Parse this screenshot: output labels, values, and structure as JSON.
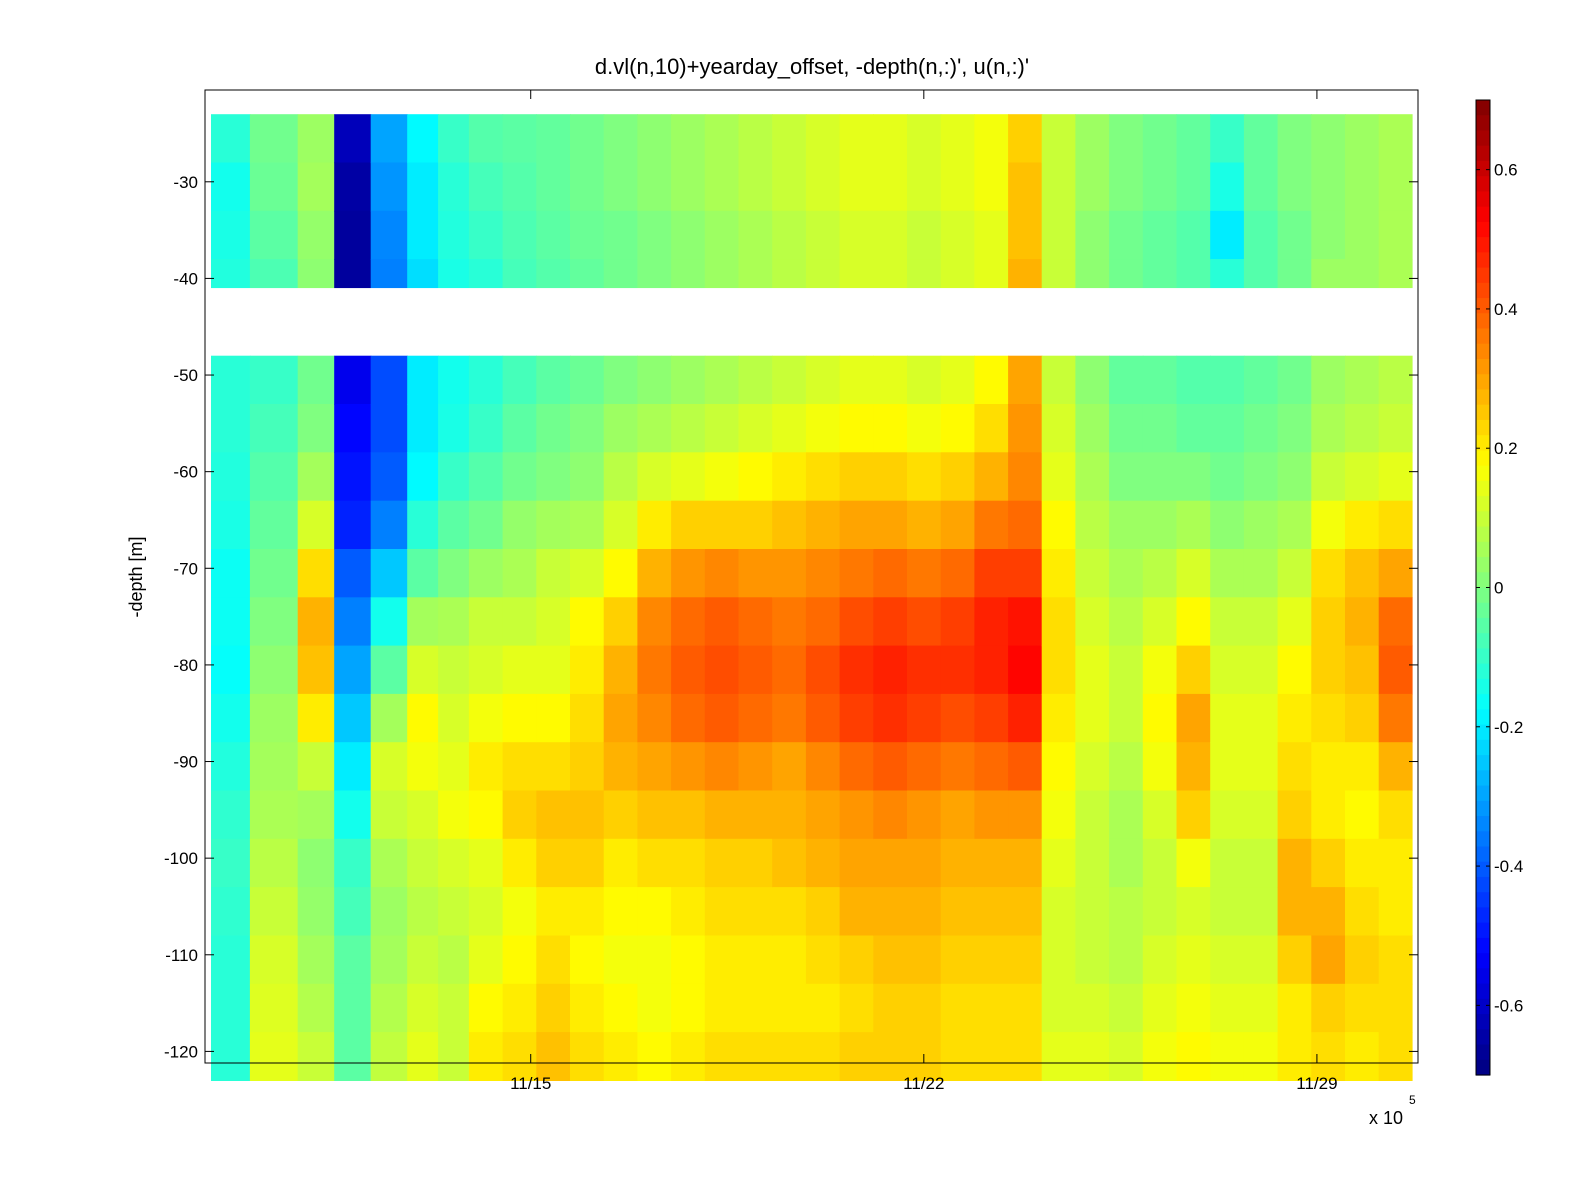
{
  "chart_data": {
    "type": "heatmap",
    "title": "d.vl(n,10)+yearday_offset, -depth(n,:)', u(n,:)'",
    "xlabel": "",
    "ylabel": "-depth [m]",
    "x_multiplier": "x 10",
    "x_multiplier_exponent": "5",
    "x_ticks": [
      {
        "label": "11/15",
        "day": 15
      },
      {
        "label": "11/22",
        "day": 22
      },
      {
        "label": "11/29",
        "day": 29
      }
    ],
    "xlim_days": [
      9.2,
      30.8
    ],
    "y_ticks": [
      -30,
      -40,
      -50,
      -60,
      -70,
      -80,
      -90,
      -100,
      -110,
      -120
    ],
    "ylim": [
      -121.2,
      -20.5
    ],
    "colorbar": {
      "clim": [
        -0.7,
        0.7
      ],
      "ticks": [
        0.6,
        0.4,
        0.2,
        0,
        -0.2,
        -0.4,
        -0.6
      ],
      "tick_labels": [
        "0.6",
        "0.4",
        "0.2",
        "0",
        "-0.2",
        "-0.4",
        "-0.6"
      ],
      "colormap": "jet"
    },
    "gap_depth_range_m": [
      -45.5,
      -41
    ],
    "depth_bins_m": [
      -25.5,
      -30.5,
      -35.5,
      -40.5,
      -50.5,
      -55.5,
      -60.5,
      -65.5,
      -70.5,
      -75.5,
      -80.5,
      -85.5,
      -90.5,
      -95.5,
      -100.5,
      -105.5,
      -110.5,
      -115.5,
      -120.5
    ],
    "profile_days": [
      9.5,
      10.5,
      11.2,
      11.8,
      12.5,
      13.1,
      13.6,
      14.2,
      14.8,
      15.4,
      16.0,
      16.6,
      17.2,
      17.8,
      18.4,
      19.0,
      19.6,
      20.2,
      20.8,
      21.4,
      22.0,
      22.6,
      23.2,
      23.8,
      24.4,
      25.0,
      25.6,
      26.2,
      26.8,
      27.4,
      28.0,
      28.6,
      29.2,
      29.8,
      30.4
    ],
    "u_values_m_s": [
      [
        -0.12,
        -0.15,
        -0.14,
        -0.13,
        -0.12,
        -0.12,
        -0.13,
        -0.14,
        -0.16,
        -0.16,
        -0.17,
        -0.15,
        -0.13,
        -0.11,
        -0.1,
        -0.11,
        -0.12,
        -0.12,
        -0.12
      ],
      [
        -0.02,
        -0.03,
        -0.05,
        -0.07,
        -0.1,
        -0.08,
        -0.06,
        -0.04,
        -0.02,
        0.0,
        0.02,
        0.04,
        0.05,
        0.06,
        0.08,
        0.1,
        0.12,
        0.13,
        0.14
      ],
      [
        0.04,
        0.05,
        0.03,
        0.02,
        -0.02,
        0.0,
        0.05,
        0.12,
        0.22,
        0.28,
        0.26,
        0.2,
        0.1,
        0.05,
        0.02,
        0.03,
        0.05,
        0.07,
        0.1
      ],
      [
        -0.62,
        -0.65,
        -0.66,
        -0.66,
        -0.55,
        -0.52,
        -0.5,
        -0.48,
        -0.4,
        -0.35,
        -0.3,
        -0.25,
        -0.2,
        -0.15,
        -0.1,
        -0.08,
        -0.05,
        -0.05,
        -0.05
      ],
      [
        -0.3,
        -0.32,
        -0.34,
        -0.35,
        -0.42,
        -0.42,
        -0.4,
        -0.35,
        -0.25,
        -0.15,
        -0.05,
        0.05,
        0.12,
        0.1,
        0.06,
        0.04,
        0.05,
        0.07,
        0.09
      ],
      [
        -0.18,
        -0.2,
        -0.2,
        -0.22,
        -0.2,
        -0.2,
        -0.18,
        -0.12,
        -0.05,
        0.05,
        0.12,
        0.18,
        0.16,
        0.12,
        0.1,
        0.08,
        0.1,
        0.12,
        0.14
      ],
      [
        -0.1,
        -0.12,
        -0.13,
        -0.14,
        -0.15,
        -0.14,
        -0.1,
        -0.05,
        0.0,
        0.06,
        0.1,
        0.12,
        0.14,
        0.16,
        0.12,
        0.1,
        0.08,
        0.1,
        0.1
      ],
      [
        -0.06,
        -0.08,
        -0.1,
        -0.12,
        -0.12,
        -0.1,
        -0.06,
        -0.02,
        0.04,
        0.1,
        0.12,
        0.16,
        0.2,
        0.18,
        0.14,
        0.12,
        0.14,
        0.18,
        0.2
      ],
      [
        -0.05,
        -0.06,
        -0.07,
        -0.08,
        -0.08,
        -0.05,
        -0.02,
        0.03,
        0.06,
        0.1,
        0.14,
        0.18,
        0.22,
        0.24,
        0.2,
        0.16,
        0.18,
        0.2,
        0.22
      ],
      [
        -0.04,
        -0.04,
        -0.05,
        -0.06,
        -0.05,
        -0.02,
        0.0,
        0.05,
        0.1,
        0.12,
        0.14,
        0.18,
        0.22,
        0.26,
        0.24,
        0.2,
        0.22,
        0.24,
        0.26
      ],
      [
        -0.02,
        -0.02,
        -0.03,
        -0.04,
        -0.03,
        0.0,
        0.02,
        0.06,
        0.12,
        0.18,
        0.2,
        0.22,
        0.24,
        0.26,
        0.24,
        0.2,
        0.18,
        0.2,
        0.22
      ],
      [
        0.0,
        0.0,
        -0.02,
        -0.02,
        0.0,
        0.04,
        0.08,
        0.12,
        0.18,
        0.24,
        0.28,
        0.3,
        0.28,
        0.24,
        0.2,
        0.18,
        0.16,
        0.18,
        0.2
      ],
      [
        0.02,
        0.02,
        0.0,
        0.0,
        0.02,
        0.06,
        0.12,
        0.2,
        0.28,
        0.34,
        0.36,
        0.34,
        0.3,
        0.26,
        0.22,
        0.18,
        0.16,
        0.16,
        0.18
      ],
      [
        0.04,
        0.04,
        0.02,
        0.02,
        0.04,
        0.08,
        0.14,
        0.24,
        0.32,
        0.38,
        0.4,
        0.38,
        0.32,
        0.26,
        0.22,
        0.2,
        0.18,
        0.18,
        0.2
      ],
      [
        0.06,
        0.06,
        0.04,
        0.04,
        0.06,
        0.1,
        0.16,
        0.24,
        0.34,
        0.4,
        0.42,
        0.4,
        0.34,
        0.28,
        0.24,
        0.22,
        0.2,
        0.2,
        0.22
      ],
      [
        0.08,
        0.08,
        0.06,
        0.06,
        0.08,
        0.12,
        0.18,
        0.24,
        0.32,
        0.38,
        0.4,
        0.38,
        0.32,
        0.28,
        0.24,
        0.22,
        0.2,
        0.2,
        0.22
      ],
      [
        0.1,
        0.1,
        0.08,
        0.08,
        0.1,
        0.14,
        0.2,
        0.26,
        0.32,
        0.36,
        0.38,
        0.36,
        0.3,
        0.28,
        0.26,
        0.22,
        0.2,
        0.2,
        0.22
      ],
      [
        0.12,
        0.12,
        0.1,
        0.1,
        0.12,
        0.16,
        0.22,
        0.28,
        0.34,
        0.38,
        0.42,
        0.4,
        0.34,
        0.3,
        0.28,
        0.24,
        0.22,
        0.2,
        0.22
      ],
      [
        0.14,
        0.14,
        0.12,
        0.12,
        0.14,
        0.18,
        0.24,
        0.3,
        0.36,
        0.42,
        0.46,
        0.44,
        0.38,
        0.32,
        0.3,
        0.28,
        0.24,
        0.22,
        0.24
      ],
      [
        0.14,
        0.14,
        0.12,
        0.12,
        0.14,
        0.18,
        0.24,
        0.3,
        0.38,
        0.44,
        0.48,
        0.46,
        0.4,
        0.34,
        0.3,
        0.28,
        0.26,
        0.24,
        0.24
      ],
      [
        0.12,
        0.12,
        0.1,
        0.1,
        0.12,
        0.16,
        0.22,
        0.28,
        0.36,
        0.42,
        0.46,
        0.44,
        0.38,
        0.32,
        0.3,
        0.28,
        0.26,
        0.24,
        0.24
      ],
      [
        0.14,
        0.14,
        0.12,
        0.12,
        0.14,
        0.18,
        0.24,
        0.3,
        0.38,
        0.44,
        0.46,
        0.42,
        0.36,
        0.3,
        0.28,
        0.26,
        0.24,
        0.22,
        0.22
      ],
      [
        0.16,
        0.16,
        0.14,
        0.14,
        0.18,
        0.22,
        0.28,
        0.36,
        0.44,
        0.48,
        0.48,
        0.44,
        0.38,
        0.32,
        0.28,
        0.26,
        0.24,
        0.22,
        0.22
      ],
      [
        0.24,
        0.26,
        0.26,
        0.28,
        0.3,
        0.32,
        0.34,
        0.38,
        0.44,
        0.5,
        0.52,
        0.48,
        0.4,
        0.32,
        0.28,
        0.26,
        0.24,
        0.22,
        0.22
      ],
      [
        0.1,
        0.1,
        0.1,
        0.1,
        0.1,
        0.12,
        0.14,
        0.18,
        0.2,
        0.22,
        0.22,
        0.2,
        0.18,
        0.16,
        0.14,
        0.12,
        0.12,
        0.12,
        0.14
      ],
      [
        0.04,
        0.04,
        0.02,
        0.02,
        0.02,
        0.04,
        0.06,
        0.08,
        0.1,
        0.12,
        0.14,
        0.14,
        0.12,
        0.1,
        0.1,
        0.1,
        0.1,
        0.12,
        0.14
      ],
      [
        0.0,
        0.0,
        -0.02,
        -0.02,
        -0.04,
        -0.02,
        0.0,
        0.04,
        0.06,
        0.08,
        0.1,
        0.1,
        0.08,
        0.06,
        0.06,
        0.08,
        0.08,
        0.1,
        0.12
      ],
      [
        -0.02,
        -0.02,
        -0.04,
        -0.04,
        -0.04,
        -0.02,
        0.0,
        0.04,
        0.08,
        0.12,
        0.16,
        0.18,
        0.16,
        0.12,
        0.1,
        0.1,
        0.12,
        0.14,
        0.16
      ],
      [
        -0.04,
        -0.04,
        -0.06,
        -0.06,
        -0.06,
        -0.04,
        0.0,
        0.06,
        0.12,
        0.18,
        0.24,
        0.3,
        0.28,
        0.24,
        0.16,
        0.12,
        0.14,
        0.16,
        0.18
      ],
      [
        -0.1,
        -0.14,
        -0.2,
        -0.12,
        -0.06,
        -0.04,
        -0.02,
        0.02,
        0.06,
        0.1,
        0.12,
        0.14,
        0.14,
        0.12,
        0.1,
        0.1,
        0.12,
        0.14,
        0.16
      ],
      [
        -0.04,
        -0.04,
        -0.06,
        -0.06,
        -0.04,
        -0.02,
        0.0,
        0.04,
        0.06,
        0.1,
        0.12,
        0.14,
        0.14,
        0.12,
        0.1,
        0.1,
        0.12,
        0.14,
        0.16
      ],
      [
        0.0,
        0.0,
        -0.02,
        -0.02,
        -0.02,
        0.0,
        0.02,
        0.06,
        0.1,
        0.14,
        0.18,
        0.2,
        0.22,
        0.24,
        0.28,
        0.28,
        0.24,
        0.2,
        0.2
      ],
      [
        0.02,
        0.02,
        0.02,
        0.04,
        0.04,
        0.06,
        0.1,
        0.16,
        0.22,
        0.24,
        0.24,
        0.22,
        0.2,
        0.2,
        0.24,
        0.28,
        0.3,
        0.24,
        0.22
      ],
      [
        0.04,
        0.04,
        0.04,
        0.04,
        0.06,
        0.08,
        0.12,
        0.2,
        0.26,
        0.28,
        0.26,
        0.24,
        0.2,
        0.18,
        0.2,
        0.22,
        0.24,
        0.22,
        0.2
      ],
      [
        0.06,
        0.06,
        0.06,
        0.06,
        0.08,
        0.1,
        0.14,
        0.22,
        0.3,
        0.38,
        0.4,
        0.36,
        0.28,
        0.22,
        0.2,
        0.2,
        0.22,
        0.22,
        0.22
      ]
    ]
  }
}
